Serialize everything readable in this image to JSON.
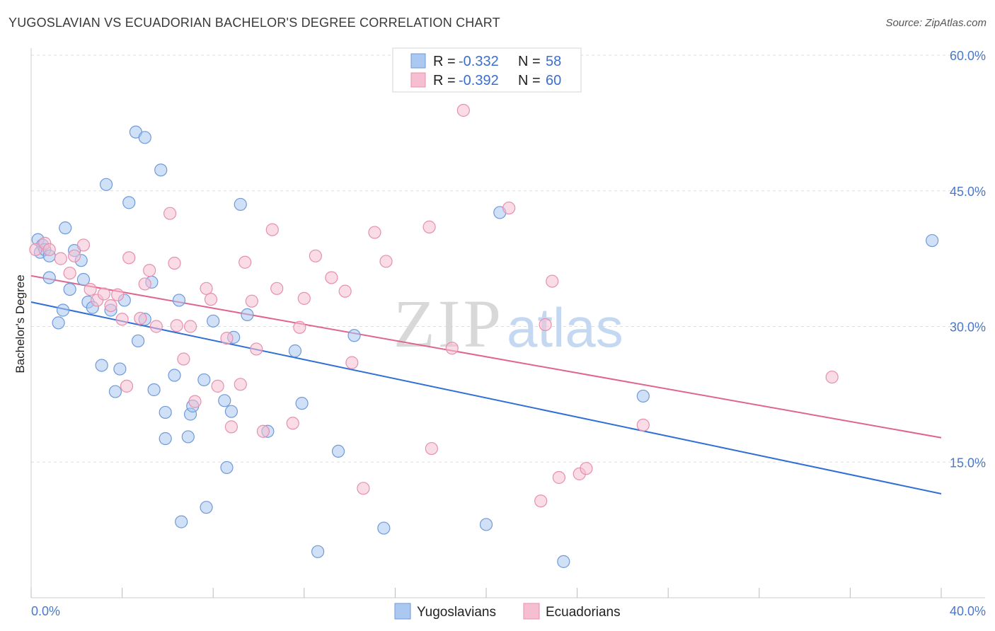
{
  "title": "YUGOSLAVIAN VS ECUADORIAN BACHELOR'S DEGREE CORRELATION CHART",
  "source": "Source: ZipAtlas.com",
  "watermark": {
    "zip": "ZIP",
    "atlas": "atlas"
  },
  "legend": {
    "r_label": "R =",
    "n_label": "N =",
    "rows": [
      {
        "r": "-0.332",
        "n": "58"
      },
      {
        "r": "-0.392",
        "n": "60"
      }
    ]
  },
  "colors": {
    "blue_fill": "#aac8f0",
    "blue_stroke": "#6f9ad8",
    "blue_line": "#2f6fd6",
    "pink_fill": "#f6bfd1",
    "pink_stroke": "#e78fae",
    "pink_line": "#e0648e",
    "tick_label": "#4a78c8",
    "grid": "#dddddd"
  },
  "chart_data": {
    "type": "scatter",
    "title": "YUGOSLAVIAN VS ECUADORIAN BACHELOR'S DEGREE CORRELATION CHART",
    "xlabel": "",
    "ylabel": "Bachelor's Degree",
    "xlim": [
      0,
      40
    ],
    "ylim": [
      0,
      60
    ],
    "x_ticks": [
      0,
      40
    ],
    "x_tick_labels": [
      "0.0%",
      "40.0%"
    ],
    "y_ticks": [
      15,
      30,
      45,
      60
    ],
    "y_tick_labels": [
      "15.0%",
      "30.0%",
      "45.0%",
      "60.0%"
    ],
    "grid": true,
    "legend_position": "top-center",
    "series": [
      {
        "name": "Yugoslavians",
        "r": -0.332,
        "n": 58,
        "trend": {
          "x": [
            0,
            40
          ],
          "y": [
            32.7,
            11.5
          ]
        },
        "points": [
          [
            0.3,
            39.6
          ],
          [
            0.5,
            39.0
          ],
          [
            0.4,
            38.2
          ],
          [
            0.6,
            38.5
          ],
          [
            0.8,
            37.8
          ],
          [
            1.5,
            40.9
          ],
          [
            1.9,
            38.4
          ],
          [
            2.2,
            37.3
          ],
          [
            0.8,
            35.4
          ],
          [
            1.7,
            34.1
          ],
          [
            2.3,
            35.2
          ],
          [
            1.4,
            31.8
          ],
          [
            2.5,
            32.7
          ],
          [
            2.7,
            32.1
          ],
          [
            3.5,
            31.8
          ],
          [
            4.1,
            32.9
          ],
          [
            1.2,
            30.4
          ],
          [
            5.0,
            30.8
          ],
          [
            5.3,
            34.9
          ],
          [
            3.3,
            45.7
          ],
          [
            4.3,
            43.7
          ],
          [
            4.6,
            51.5
          ],
          [
            5.0,
            50.9
          ],
          [
            5.7,
            47.3
          ],
          [
            4.7,
            28.4
          ],
          [
            3.1,
            25.7
          ],
          [
            3.9,
            25.3
          ],
          [
            3.7,
            22.8
          ],
          [
            5.4,
            23.0
          ],
          [
            6.3,
            24.6
          ],
          [
            7.6,
            24.1
          ],
          [
            6.5,
            32.9
          ],
          [
            8.0,
            30.6
          ],
          [
            9.5,
            31.3
          ],
          [
            8.9,
            28.8
          ],
          [
            5.9,
            20.5
          ],
          [
            7.0,
            20.3
          ],
          [
            7.1,
            21.2
          ],
          [
            8.5,
            21.8
          ],
          [
            8.8,
            20.6
          ],
          [
            5.9,
            17.6
          ],
          [
            6.9,
            17.8
          ],
          [
            10.4,
            18.4
          ],
          [
            11.9,
            21.5
          ],
          [
            11.6,
            27.3
          ],
          [
            14.2,
            29.0
          ],
          [
            13.5,
            16.2
          ],
          [
            8.6,
            14.4
          ],
          [
            7.7,
            10.0
          ],
          [
            6.6,
            8.4
          ],
          [
            12.6,
            5.1
          ],
          [
            15.5,
            7.7
          ],
          [
            20.0,
            8.1
          ],
          [
            23.4,
            4.0
          ],
          [
            9.2,
            43.5
          ],
          [
            20.6,
            42.6
          ],
          [
            26.9,
            22.3
          ],
          [
            39.6,
            39.5
          ]
        ]
      },
      {
        "name": "Ecuadorians",
        "r": -0.392,
        "n": 60,
        "trend": {
          "x": [
            0,
            40
          ],
          "y": [
            35.6,
            17.7
          ]
        },
        "points": [
          [
            0.2,
            38.5
          ],
          [
            0.6,
            39.2
          ],
          [
            0.8,
            38.5
          ],
          [
            1.3,
            37.5
          ],
          [
            1.9,
            37.8
          ],
          [
            2.3,
            39.0
          ],
          [
            1.7,
            35.9
          ],
          [
            2.6,
            34.1
          ],
          [
            2.9,
            32.9
          ],
          [
            3.2,
            33.6
          ],
          [
            3.5,
            32.3
          ],
          [
            3.8,
            33.5
          ],
          [
            4.2,
            23.4
          ],
          [
            4.3,
            37.6
          ],
          [
            5.2,
            36.2
          ],
          [
            5.0,
            34.7
          ],
          [
            4.8,
            30.9
          ],
          [
            5.5,
            30.0
          ],
          [
            6.1,
            42.5
          ],
          [
            6.4,
            30.1
          ],
          [
            6.3,
            37.0
          ],
          [
            6.7,
            26.4
          ],
          [
            7.0,
            30.0
          ],
          [
            7.2,
            21.7
          ],
          [
            7.7,
            34.2
          ],
          [
            7.9,
            33.0
          ],
          [
            8.2,
            23.4
          ],
          [
            8.6,
            28.7
          ],
          [
            8.8,
            18.9
          ],
          [
            9.2,
            23.6
          ],
          [
            9.4,
            37.1
          ],
          [
            9.7,
            32.8
          ],
          [
            9.9,
            27.5
          ],
          [
            10.2,
            18.4
          ],
          [
            10.6,
            40.7
          ],
          [
            10.8,
            34.2
          ],
          [
            11.5,
            19.3
          ],
          [
            11.8,
            29.9
          ],
          [
            12.0,
            33.1
          ],
          [
            12.5,
            37.8
          ],
          [
            13.2,
            35.4
          ],
          [
            13.8,
            33.9
          ],
          [
            14.1,
            26.0
          ],
          [
            14.6,
            12.1
          ],
          [
            15.1,
            40.4
          ],
          [
            15.6,
            37.2
          ],
          [
            17.5,
            41.0
          ],
          [
            17.6,
            16.5
          ],
          [
            18.5,
            27.6
          ],
          [
            19.0,
            53.9
          ],
          [
            21.0,
            43.1
          ],
          [
            22.4,
            10.7
          ],
          [
            22.6,
            30.2
          ],
          [
            22.9,
            35.0
          ],
          [
            23.2,
            13.3
          ],
          [
            24.1,
            13.7
          ],
          [
            24.4,
            14.3
          ],
          [
            26.9,
            19.1
          ],
          [
            35.2,
            24.4
          ],
          [
            4.0,
            30.8
          ]
        ]
      }
    ]
  },
  "bottom_legend": [
    "Yugoslavians",
    "Ecuadorians"
  ]
}
